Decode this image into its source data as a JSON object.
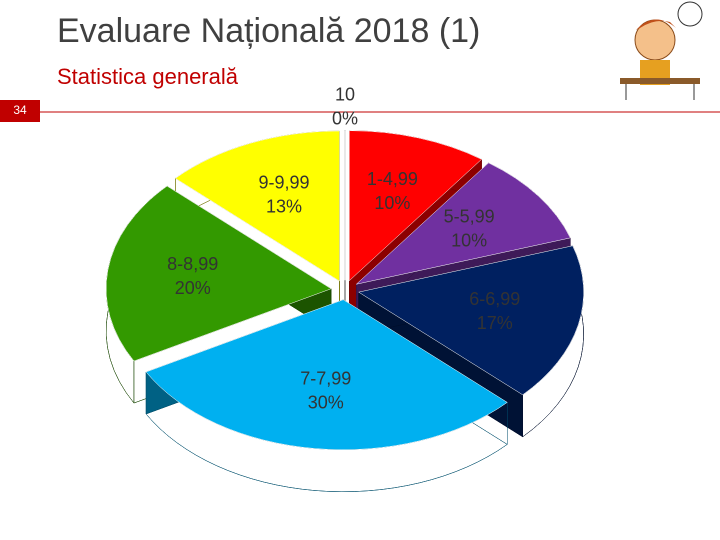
{
  "slide_number": "34",
  "chart_data": {
    "type": "pie",
    "title": "Evaluare Națională 2018 (1)",
    "subtitle": "Statistica generală",
    "categories": [
      "1-4,99",
      "5-5,99",
      "6-6,99",
      "7-7,99",
      "8-8,99",
      "9-9,99",
      "10"
    ],
    "values": [
      10,
      10,
      17,
      30,
      20,
      13,
      0
    ],
    "value_labels": [
      "10%",
      "10%",
      "17%",
      "30%",
      "20%",
      "13%",
      "0%"
    ],
    "colors": [
      "#ff0000",
      "#7030a0",
      "#002060",
      "#00b0f0",
      "#339900",
      "#ffff00",
      "#a6a6a6"
    ]
  }
}
